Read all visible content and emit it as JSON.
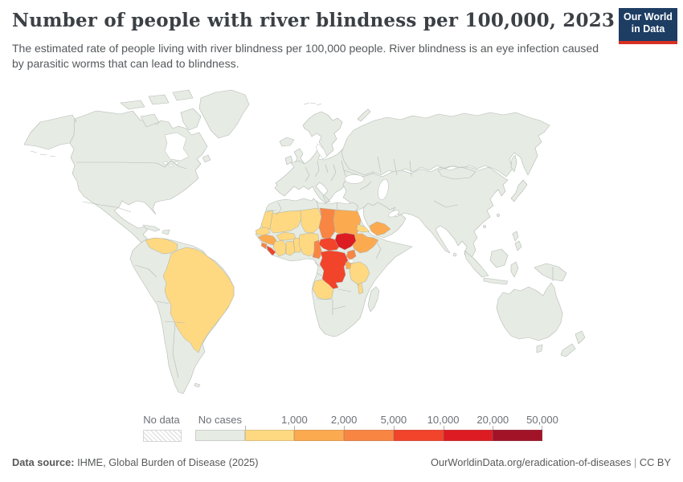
{
  "header": {
    "title": "Number of people with river blindness per 100,000, 2023",
    "subtitle": "The estimated rate of people living with river blindness per 100,000 people. River blindness is an eye infection caused by parasitic worms that can lead to blindness."
  },
  "logo": {
    "line1": "Our World",
    "line2": "in Data",
    "bg_color": "#1d3d63",
    "accent_color": "#d93025"
  },
  "legend": {
    "no_data_label": "No data",
    "no_cases_label": "No cases",
    "tick_labels": [
      "1,000",
      "2,000",
      "5,000",
      "10,000",
      "20,000",
      "50,000"
    ],
    "bin_colors": [
      "#e6ebe4",
      "#fed981",
      "#fcaa4f",
      "#f98543",
      "#f2432b",
      "#dc1c22",
      "#a21328"
    ]
  },
  "footer": {
    "source_label": "Data source:",
    "source_value": " IHME, Global Burden of Disease (2025)",
    "link": "OurWorldinData.org/eradication-of-diseases",
    "separator": " | ",
    "license": "CC BY"
  },
  "chart_data": {
    "type": "choropleth",
    "title": "Number of people with river blindness per 100,000, 2023",
    "unit": "people with river blindness per 100,000 people",
    "year": 2023,
    "legend_bins": [
      "No data",
      "No cases",
      "up to 1,000",
      "1,000-2,000",
      "2,000-5,000",
      "5,000-10,000",
      "10,000-20,000",
      "20,000-50,000"
    ],
    "default_fill": "No cases (all countries not listed)",
    "countries": [
      {
        "name": "Venezuela",
        "bin_index": 1,
        "bin": "up to 1,000"
      },
      {
        "name": "Brazil",
        "bin_index": 1,
        "bin": "up to 1,000"
      },
      {
        "name": "Mauritania",
        "bin_index": 1,
        "bin": "up to 1,000"
      },
      {
        "name": "Senegal",
        "bin_index": 1,
        "bin": "up to 1,000"
      },
      {
        "name": "Mali",
        "bin_index": 1,
        "bin": "up to 1,000"
      },
      {
        "name": "Burkina Faso",
        "bin_index": 1,
        "bin": "up to 1,000"
      },
      {
        "name": "Cote d'Ivoire",
        "bin_index": 1,
        "bin": "up to 1,000"
      },
      {
        "name": "Ghana",
        "bin_index": 1,
        "bin": "up to 1,000"
      },
      {
        "name": "Togo and Benin",
        "bin_index": 1,
        "bin": "up to 1,000"
      },
      {
        "name": "Niger",
        "bin_index": 1,
        "bin": "up to 1,000"
      },
      {
        "name": "Nigeria",
        "bin_index": 1,
        "bin": "up to 1,000"
      },
      {
        "name": "Eritrea",
        "bin_index": 1,
        "bin": "up to 1,000"
      },
      {
        "name": "Tanzania",
        "bin_index": 1,
        "bin": "up to 1,000"
      },
      {
        "name": "Malawi",
        "bin_index": 1,
        "bin": "up to 1,000"
      },
      {
        "name": "Angola",
        "bin_index": 1,
        "bin": "up to 1,000"
      },
      {
        "name": "Guinea",
        "bin_index": 2,
        "bin": "1,000-2,000"
      },
      {
        "name": "Sudan",
        "bin_index": 2,
        "bin": "1,000-2,000"
      },
      {
        "name": "Ethiopia",
        "bin_index": 2,
        "bin": "1,000-2,000"
      },
      {
        "name": "Yemen",
        "bin_index": 2,
        "bin": "1,000-2,000"
      },
      {
        "name": "Rwanda and Burundi",
        "bin_index": 2,
        "bin": "1,000-2,000"
      },
      {
        "name": "Sierra Leone",
        "bin_index": 3,
        "bin": "2,000-5,000"
      },
      {
        "name": "Chad",
        "bin_index": 3,
        "bin": "2,000-5,000"
      },
      {
        "name": "Cameroon",
        "bin_index": 3,
        "bin": "2,000-5,000"
      },
      {
        "name": "Uganda",
        "bin_index": 3,
        "bin": "2,000-5,000"
      },
      {
        "name": "Liberia",
        "bin_index": 4,
        "bin": "5,000-10,000"
      },
      {
        "name": "Central African Republic",
        "bin_index": 4,
        "bin": "5,000-10,000"
      },
      {
        "name": "Democratic Republic of Congo",
        "bin_index": 4,
        "bin": "5,000-10,000"
      },
      {
        "name": "South Sudan",
        "bin_index": 5,
        "bin": "10,000-20,000"
      }
    ]
  }
}
